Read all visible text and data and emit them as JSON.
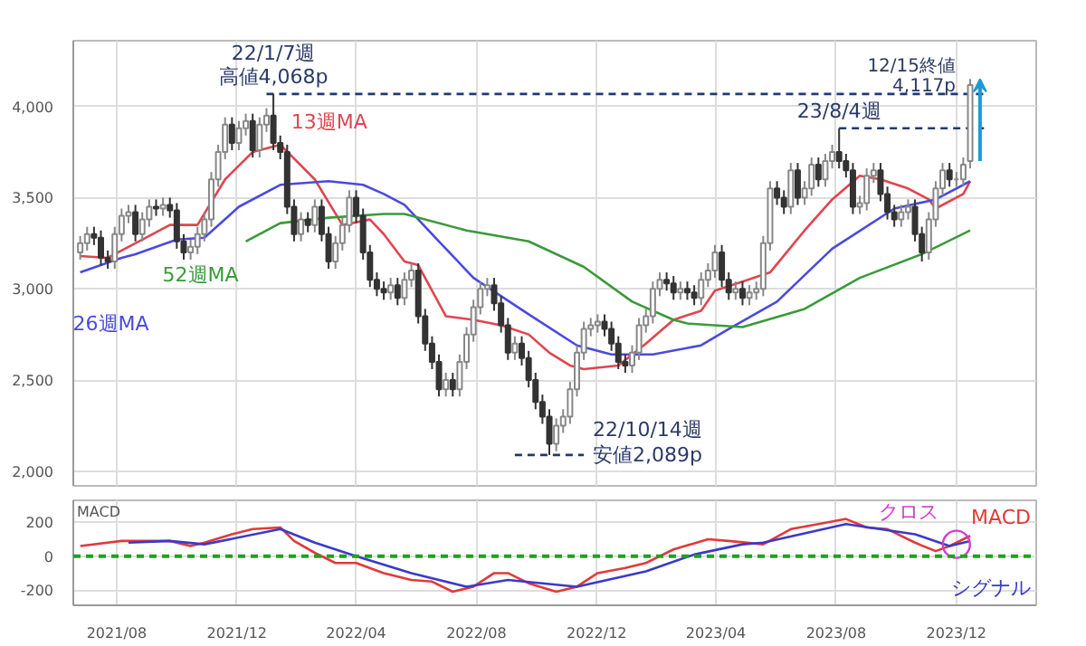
{
  "chart_data": [
    {
      "type": "candlestick",
      "x": [
        "2021-06-25",
        "2021-07-02",
        "2021-07-09",
        "2021-07-16",
        "2021-07-23",
        "2021-07-30",
        "2021-08-06",
        "2021-08-13",
        "2021-08-20",
        "2021-08-27",
        "2021-09-03",
        "2021-09-10",
        "2021-09-17",
        "2021-09-24",
        "2021-10-01",
        "2021-10-08",
        "2021-10-15",
        "2021-10-22",
        "2021-10-29",
        "2021-11-05",
        "2021-11-12",
        "2021-11-19",
        "2021-11-26",
        "2021-12-03",
        "2021-12-10",
        "2021-12-17",
        "2021-12-24",
        "2021-12-31",
        "2022-01-07",
        "2022-01-14",
        "2022-01-21",
        "2022-01-28",
        "2022-02-04",
        "2022-02-11",
        "2022-02-18",
        "2022-02-25",
        "2022-03-04",
        "2022-03-11",
        "2022-03-18",
        "2022-03-25",
        "2022-04-01",
        "2022-04-08",
        "2022-04-15",
        "2022-04-22",
        "2022-04-29",
        "2022-05-06",
        "2022-05-13",
        "2022-05-20",
        "2022-05-27",
        "2022-06-03",
        "2022-06-10",
        "2022-06-17",
        "2022-06-24",
        "2022-07-01",
        "2022-07-08",
        "2022-07-15",
        "2022-07-22",
        "2022-07-29",
        "2022-08-05",
        "2022-08-12",
        "2022-08-19",
        "2022-08-26",
        "2022-09-02",
        "2022-09-09",
        "2022-09-16",
        "2022-09-23",
        "2022-09-30",
        "2022-10-07",
        "2022-10-14",
        "2022-10-21",
        "2022-10-28",
        "2022-11-04",
        "2022-11-11",
        "2022-11-18",
        "2022-11-25",
        "2022-12-02",
        "2022-12-09",
        "2022-12-16",
        "2022-12-23",
        "2022-12-30",
        "2023-01-06",
        "2023-01-13",
        "2023-01-20",
        "2023-01-27",
        "2023-02-03",
        "2023-02-10",
        "2023-02-17",
        "2023-02-24",
        "2023-03-03",
        "2023-03-10",
        "2023-03-17",
        "2023-03-24",
        "2023-03-31",
        "2023-04-07",
        "2023-04-14",
        "2023-04-21",
        "2023-04-28",
        "2023-05-05",
        "2023-05-12",
        "2023-05-19",
        "2023-05-26",
        "2023-06-02",
        "2023-06-09",
        "2023-06-16",
        "2023-06-23",
        "2023-06-30",
        "2023-07-07",
        "2023-07-14",
        "2023-07-21",
        "2023-07-28",
        "2023-08-04",
        "2023-08-11",
        "2023-08-18",
        "2023-08-25",
        "2023-09-01",
        "2023-09-08",
        "2023-09-15",
        "2023-09-22",
        "2023-09-29",
        "2023-10-06",
        "2023-10-13",
        "2023-10-20",
        "2023-10-27",
        "2023-11-03",
        "2023-11-10",
        "2023-11-17",
        "2023-11-24",
        "2023-12-01",
        "2023-12-08",
        "2023-12-15"
      ],
      "ohlc": [
        [
          3200,
          3290,
          3160,
          3250
        ],
        [
          3250,
          3340,
          3210,
          3300
        ],
        [
          3300,
          3340,
          3240,
          3280
        ],
        [
          3280,
          3320,
          3130,
          3170
        ],
        [
          3170,
          3210,
          3110,
          3150
        ],
        [
          3150,
          3340,
          3110,
          3300
        ],
        [
          3300,
          3440,
          3260,
          3400
        ],
        [
          3400,
          3460,
          3360,
          3420
        ],
        [
          3420,
          3460,
          3260,
          3300
        ],
        [
          3300,
          3420,
          3260,
          3380
        ],
        [
          3380,
          3490,
          3340,
          3450
        ],
        [
          3450,
          3490,
          3400,
          3440
        ],
        [
          3440,
          3500,
          3400,
          3460
        ],
        [
          3460,
          3500,
          3390,
          3430
        ],
        [
          3430,
          3470,
          3220,
          3260
        ],
        [
          3260,
          3300,
          3160,
          3200
        ],
        [
          3200,
          3270,
          3160,
          3230
        ],
        [
          3230,
          3340,
          3190,
          3300
        ],
        [
          3300,
          3420,
          3260,
          3380
        ],
        [
          3380,
          3640,
          3340,
          3600
        ],
        [
          3600,
          3790,
          3560,
          3750
        ],
        [
          3750,
          3940,
          3710,
          3900
        ],
        [
          3900,
          3940,
          3760,
          3800
        ],
        [
          3800,
          3920,
          3760,
          3880
        ],
        [
          3880,
          3960,
          3840,
          3920
        ],
        [
          3920,
          3960,
          3720,
          3760
        ],
        [
          3760,
          3940,
          3720,
          3900
        ],
        [
          3900,
          3990,
          3860,
          3950
        ],
        [
          3950,
          4068,
          3760,
          3800
        ],
        [
          3800,
          3840,
          3710,
          3750
        ],
        [
          3750,
          3790,
          3410,
          3450
        ],
        [
          3450,
          3490,
          3260,
          3300
        ],
        [
          3300,
          3420,
          3260,
          3380
        ],
        [
          3380,
          3420,
          3310,
          3350
        ],
        [
          3350,
          3490,
          3310,
          3450
        ],
        [
          3450,
          3490,
          3260,
          3300
        ],
        [
          3300,
          3340,
          3110,
          3150
        ],
        [
          3150,
          3290,
          3110,
          3250
        ],
        [
          3250,
          3390,
          3210,
          3350
        ],
        [
          3350,
          3540,
          3310,
          3500
        ],
        [
          3500,
          3540,
          3360,
          3400
        ],
        [
          3400,
          3440,
          3160,
          3200
        ],
        [
          3200,
          3240,
          3010,
          3050
        ],
        [
          3050,
          3090,
          2960,
          3000
        ],
        [
          3000,
          3040,
          2940,
          2980
        ],
        [
          2980,
          3060,
          2940,
          3020
        ],
        [
          3020,
          3060,
          2910,
          2950
        ],
        [
          2950,
          3090,
          2910,
          3050
        ],
        [
          3050,
          3140,
          3010,
          3100
        ],
        [
          3100,
          3140,
          2810,
          2850
        ],
        [
          2850,
          2890,
          2660,
          2700
        ],
        [
          2700,
          2740,
          2560,
          2600
        ],
        [
          2600,
          2640,
          2410,
          2450
        ],
        [
          2450,
          2540,
          2410,
          2500
        ],
        [
          2500,
          2540,
          2410,
          2450
        ],
        [
          2450,
          2640,
          2410,
          2600
        ],
        [
          2600,
          2790,
          2560,
          2750
        ],
        [
          2750,
          2940,
          2710,
          2900
        ],
        [
          2900,
          3040,
          2860,
          3000
        ],
        [
          3000,
          3060,
          2960,
          3020
        ],
        [
          3020,
          3060,
          2880,
          2920
        ],
        [
          2920,
          2960,
          2760,
          2800
        ],
        [
          2800,
          2840,
          2610,
          2650
        ],
        [
          2650,
          2740,
          2610,
          2700
        ],
        [
          2700,
          2740,
          2580,
          2620
        ],
        [
          2620,
          2660,
          2460,
          2500
        ],
        [
          2500,
          2540,
          2340,
          2380
        ],
        [
          2380,
          2420,
          2260,
          2300
        ],
        [
          2300,
          2340,
          2089,
          2150
        ],
        [
          2150,
          2290,
          2110,
          2250
        ],
        [
          2250,
          2340,
          2210,
          2300
        ],
        [
          2300,
          2490,
          2260,
          2450
        ],
        [
          2450,
          2690,
          2410,
          2650
        ],
        [
          2650,
          2820,
          2610,
          2780
        ],
        [
          2780,
          2840,
          2740,
          2800
        ],
        [
          2800,
          2860,
          2760,
          2820
        ],
        [
          2820,
          2860,
          2740,
          2780
        ],
        [
          2780,
          2820,
          2660,
          2700
        ],
        [
          2700,
          2740,
          2560,
          2600
        ],
        [
          2600,
          2640,
          2540,
          2580
        ],
        [
          2580,
          2690,
          2540,
          2650
        ],
        [
          2650,
          2840,
          2610,
          2800
        ],
        [
          2800,
          2890,
          2760,
          2850
        ],
        [
          2850,
          3040,
          2810,
          3000
        ],
        [
          3000,
          3090,
          2960,
          3050
        ],
        [
          3050,
          3090,
          2990,
          3030
        ],
        [
          3030,
          3070,
          2940,
          2980
        ],
        [
          2980,
          3040,
          2940,
          3000
        ],
        [
          3000,
          3040,
          2940,
          2980
        ],
        [
          2980,
          3020,
          2910,
          2950
        ],
        [
          2950,
          3090,
          2910,
          3050
        ],
        [
          3050,
          3140,
          3010,
          3100
        ],
        [
          3100,
          3240,
          3060,
          3200
        ],
        [
          3200,
          3240,
          3010,
          3050
        ],
        [
          3050,
          3090,
          2940,
          2980
        ],
        [
          2980,
          3040,
          2940,
          3000
        ],
        [
          3000,
          3040,
          2910,
          2950
        ],
        [
          2950,
          3020,
          2910,
          2980
        ],
        [
          2980,
          3040,
          2940,
          3000
        ],
        [
          3000,
          3290,
          2960,
          3250
        ],
        [
          3250,
          3590,
          3210,
          3550
        ],
        [
          3550,
          3590,
          3460,
          3500
        ],
        [
          3500,
          3540,
          3410,
          3450
        ],
        [
          3450,
          3690,
          3410,
          3650
        ],
        [
          3650,
          3690,
          3460,
          3500
        ],
        [
          3500,
          3590,
          3460,
          3550
        ],
        [
          3550,
          3720,
          3510,
          3680
        ],
        [
          3680,
          3720,
          3560,
          3600
        ],
        [
          3600,
          3740,
          3560,
          3700
        ],
        [
          3700,
          3790,
          3660,
          3750
        ],
        [
          3750,
          3880,
          3660,
          3700
        ],
        [
          3700,
          3740,
          3610,
          3650
        ],
        [
          3650,
          3690,
          3410,
          3450
        ],
        [
          3450,
          3510,
          3410,
          3470
        ],
        [
          3470,
          3660,
          3430,
          3620
        ],
        [
          3620,
          3690,
          3580,
          3650
        ],
        [
          3650,
          3690,
          3480,
          3520
        ],
        [
          3520,
          3560,
          3380,
          3420
        ],
        [
          3420,
          3460,
          3340,
          3380
        ],
        [
          3380,
          3460,
          3340,
          3420
        ],
        [
          3420,
          3490,
          3380,
          3450
        ],
        [
          3450,
          3490,
          3260,
          3300
        ],
        [
          3300,
          3340,
          3150,
          3200
        ],
        [
          3200,
          3420,
          3160,
          3380
        ],
        [
          3380,
          3590,
          3340,
          3550
        ],
        [
          3550,
          3690,
          3510,
          3650
        ],
        [
          3650,
          3690,
          3560,
          3600
        ],
        [
          3600,
          3640,
          3560,
          3600
        ],
        [
          3600,
          3720,
          3560,
          3680
        ],
        [
          3700,
          4150,
          3660,
          4117
        ]
      ],
      "series": [
        {
          "name": "13週MA",
          "type": "line",
          "color": "#e0454f",
          "x": [
            "2021-06-25",
            "2021-07-23",
            "2021-08-20",
            "2021-09-24",
            "2021-10-22",
            "2021-11-19",
            "2021-12-17",
            "2022-01-14",
            "2022-02-18",
            "2022-03-18",
            "2022-04-15",
            "2022-04-29",
            "2022-05-20",
            "2022-06-03",
            "2022-07-01",
            "2022-07-29",
            "2022-08-26",
            "2022-09-23",
            "2022-10-14",
            "2022-11-04",
            "2022-11-18",
            "2022-12-23",
            "2023-01-20",
            "2023-02-17",
            "2023-03-17",
            "2023-03-31",
            "2023-04-28",
            "2023-05-26",
            "2023-06-30",
            "2023-07-28",
            "2023-08-25",
            "2023-09-15",
            "2023-10-13",
            "2023-11-03",
            "2023-11-10",
            "2023-12-08",
            "2023-12-15"
          ],
          "values": [
            3180,
            3170,
            3250,
            3350,
            3350,
            3600,
            3750,
            3790,
            3600,
            3350,
            3380,
            3300,
            3150,
            3130,
            2850,
            2830,
            2800,
            2750,
            2650,
            2580,
            2560,
            2580,
            2700,
            2830,
            2880,
            2990,
            3040,
            3090,
            3320,
            3490,
            3620,
            3600,
            3550,
            3490,
            3440,
            3520,
            3590
          ]
        },
        {
          "name": "26週MA",
          "type": "line",
          "color": "#4a4adf",
          "x": [
            "2021-06-25",
            "2021-08-06",
            "2021-08-20",
            "2021-10-01",
            "2021-10-29",
            "2021-12-03",
            "2022-01-14",
            "2022-03-04",
            "2022-04-08",
            "2022-04-29",
            "2022-05-20",
            "2022-06-24",
            "2022-07-29",
            "2022-09-23",
            "2022-11-11",
            "2022-12-16",
            "2023-01-27",
            "2023-03-17",
            "2023-04-14",
            "2023-06-02",
            "2023-07-28",
            "2023-09-29",
            "2023-11-10",
            "2023-12-15"
          ],
          "values": [
            3090,
            3170,
            3190,
            3270,
            3280,
            3450,
            3570,
            3590,
            3570,
            3520,
            3460,
            3260,
            3060,
            2860,
            2690,
            2640,
            2640,
            2690,
            2780,
            2930,
            3220,
            3440,
            3490,
            3590
          ]
        },
        {
          "name": "52週MA",
          "type": "line",
          "color": "#3a9a3a",
          "x": [
            "2021-12-10",
            "2022-01-14",
            "2022-03-04",
            "2022-04-29",
            "2022-05-20",
            "2022-07-22",
            "2022-09-23",
            "2022-11-18",
            "2023-01-06",
            "2023-02-17",
            "2023-03-03",
            "2023-04-28",
            "2023-06-30",
            "2023-08-25",
            "2023-10-27",
            "2023-12-15"
          ],
          "values": [
            3260,
            3360,
            3390,
            3410,
            3410,
            3320,
            3260,
            3120,
            2930,
            2830,
            2810,
            2790,
            2890,
            3060,
            3190,
            3320
          ]
        },
        {
          "type": "line",
          "color": "#1f3a6e",
          "line_style": "dashed",
          "x": [
            "2021-12-31",
            "2023-12-29"
          ],
          "values": [
            4068,
            4068
          ]
        },
        {
          "type": "line",
          "color": "#1f3a6e",
          "line_style": "dashed",
          "x": [
            "2022-09-09",
            "2022-11-18"
          ],
          "values": [
            2089,
            2089
          ]
        },
        {
          "type": "line",
          "color": "#1f3a6e",
          "line_style": "dashed",
          "x": [
            "2023-08-04",
            "2023-12-29"
          ],
          "values": [
            3880,
            3880
          ]
        }
      ],
      "annotations": [
        {
          "text": "22/1/7週",
          "x": "2022-01-07",
          "y": 4068
        },
        {
          "text": "高値4,068p",
          "x": "2022-01-07",
          "y": 4068
        },
        {
          "text": "22/10/14週",
          "x": "2022-10-14",
          "y": 2089
        },
        {
          "text": "安値2,089p",
          "x": "2022-10-14",
          "y": 2089
        },
        {
          "text": "23/8/4週",
          "x": "2023-08-04",
          "y": 3880
        },
        {
          "text": "12/15終値",
          "x": "2023-12-15",
          "y": 4117
        },
        {
          "text": "4,117p",
          "x": "2023-12-15",
          "y": 4117
        }
      ],
      "xlim": [
        "2021-06-18",
        "2024-02-20"
      ],
      "xticks": [
        {
          "value": "2021-08-01",
          "label": null
        },
        {
          "value": "2021-12-01",
          "label": null
        },
        {
          "value": "2022-04-01",
          "label": null
        },
        {
          "value": "2022-08-01",
          "label": null
        },
        {
          "value": "2022-12-01",
          "label": null
        },
        {
          "value": "2023-04-01",
          "label": null
        },
        {
          "value": "2023-08-01",
          "label": null
        },
        {
          "value": "2023-12-01",
          "label": null
        }
      ],
      "ylim": [
        1920,
        4360
      ],
      "yticks": [
        {
          "value": 2000,
          "label": "2,000"
        },
        {
          "value": 2500,
          "label": "2,500"
        },
        {
          "value": 3000,
          "label": "3,000"
        },
        {
          "value": 3500,
          "label": "3,500"
        },
        {
          "value": 4000,
          "label": "4,000"
        }
      ],
      "grid": true,
      "tick_labels": "y"
    },
    {
      "type": "line",
      "ylabel": "MACD",
      "series": [
        {
          "name": "MACD",
          "color": "#e03a3a",
          "x": [
            "2021-06-25",
            "2021-08-06",
            "2021-09-24",
            "2021-10-15",
            "2021-10-29",
            "2021-11-26",
            "2021-12-17",
            "2022-01-14",
            "2022-01-28",
            "2022-02-18",
            "2022-03-11",
            "2022-04-01",
            "2022-04-29",
            "2022-05-27",
            "2022-06-17",
            "2022-07-08",
            "2022-07-29",
            "2022-08-19",
            "2022-09-02",
            "2022-09-23",
            "2022-10-21",
            "2022-11-11",
            "2022-12-02",
            "2022-12-30",
            "2023-01-20",
            "2023-02-17",
            "2023-03-24",
            "2023-04-14",
            "2023-05-19",
            "2023-06-16",
            "2023-07-14",
            "2023-08-11",
            "2023-09-01",
            "2023-09-22",
            "2023-10-20",
            "2023-11-10",
            "2023-11-24",
            "2023-12-15"
          ],
          "values": [
            60,
            90,
            90,
            60,
            80,
            130,
            160,
            170,
            90,
            20,
            -40,
            -40,
            -100,
            -140,
            -150,
            -210,
            -180,
            -100,
            -100,
            -160,
            -210,
            -180,
            -100,
            -70,
            -40,
            40,
            100,
            90,
            70,
            160,
            190,
            220,
            170,
            160,
            80,
            30,
            60,
            120
          ]
        },
        {
          "name": "シグナル",
          "color": "#3a3ac8",
          "x": [
            "2021-08-13",
            "2021-09-24",
            "2021-10-29",
            "2022-01-14",
            "2022-02-18",
            "2022-04-01",
            "2022-05-27",
            "2022-07-22",
            "2022-09-02",
            "2022-11-11",
            "2023-01-20",
            "2023-03-10",
            "2023-04-28",
            "2023-05-19",
            "2023-08-11",
            "2023-10-20",
            "2023-11-24",
            "2023-12-15"
          ],
          "values": [
            80,
            90,
            70,
            160,
            80,
            0,
            -100,
            -180,
            -140,
            -180,
            -90,
            10,
            70,
            80,
            190,
            130,
            60,
            90
          ]
        }
      ],
      "annotations": [
        {
          "text": "クロス",
          "x": "2023-12-01",
          "y": 70
        }
      ],
      "ref_lines": [
        {
          "axis": "y",
          "value": 0,
          "color": "#22a022",
          "line_style": "dashed"
        }
      ],
      "xlim": [
        "2021-06-18",
        "2024-02-20"
      ],
      "xticks": [
        {
          "value": "2021-08-01",
          "label": "2021/08"
        },
        {
          "value": "2021-12-01",
          "label": "2021/12"
        },
        {
          "value": "2022-04-01",
          "label": "2022/04"
        },
        {
          "value": "2022-08-01",
          "label": "2022/08"
        },
        {
          "value": "2022-12-01",
          "label": "2022/12"
        },
        {
          "value": "2023-04-01",
          "label": "2023/04"
        },
        {
          "value": "2023-08-01",
          "label": "2023/08"
        },
        {
          "value": "2023-12-01",
          "label": "2023/12"
        }
      ],
      "ylim": [
        -290,
        330
      ],
      "yticks": [
        -200,
        0,
        200
      ],
      "grid": true
    }
  ]
}
